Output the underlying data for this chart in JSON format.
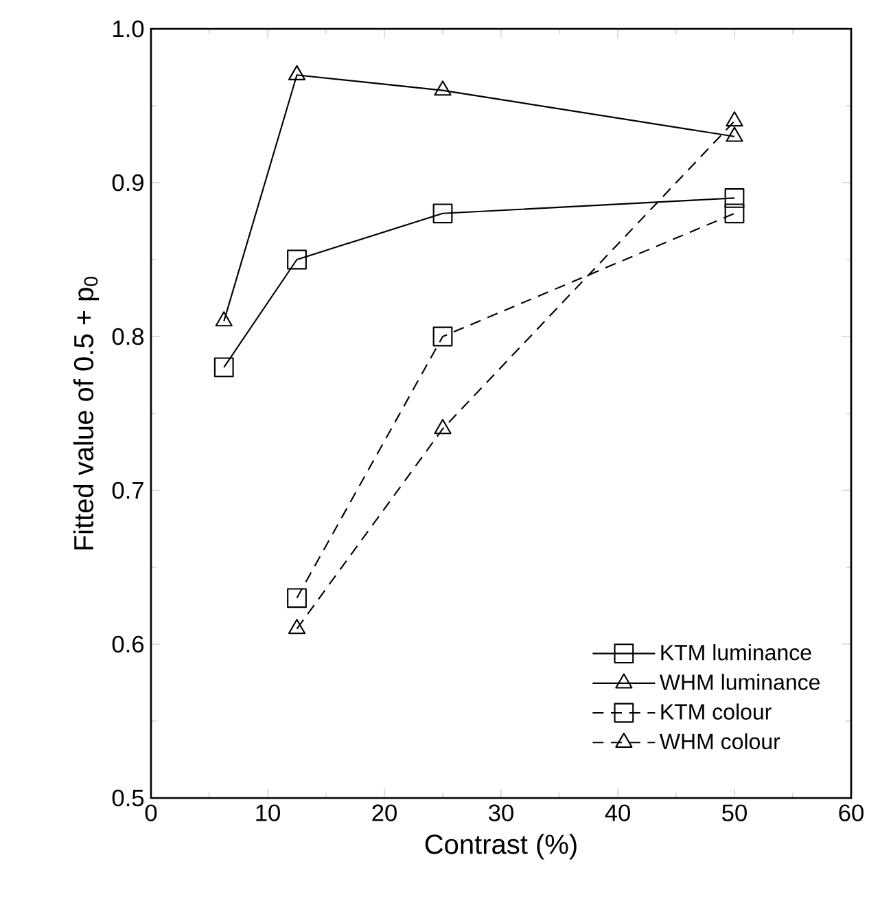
{
  "chart_data": {
    "type": "line",
    "xlabel": "Contrast (%)",
    "ylabel": "Fitted value of 0.5 + p$_{0}$",
    "xlim": [
      0,
      60
    ],
    "ylim": [
      0.5,
      1.0
    ],
    "xticks": [
      0,
      10,
      20,
      30,
      40,
      50,
      60
    ],
    "yticks": [
      0.5,
      0.6,
      0.7,
      0.8,
      0.9,
      {
        "value": 1.0,
        "label": "1.0"
      }
    ],
    "grid": false,
    "legend": "bottom right",
    "series": [
      {
        "name": "KTM luminance",
        "color": "#000000",
        "x": [
          6.25,
          12.5,
          25,
          50
        ],
        "values": [
          0.78,
          0.85,
          0.88,
          0.89
        ],
        "marker": "square",
        "line_style": "solid"
      },
      {
        "name": "WHM luminance",
        "color": "#000000",
        "x": [
          6.25,
          12.5,
          25,
          50
        ],
        "values": [
          0.81,
          0.97,
          0.96,
          0.93
        ],
        "marker": "triangle",
        "line_style": "solid"
      },
      {
        "name": "KTM colour",
        "color": "#000000",
        "x": [
          12.5,
          25,
          50
        ],
        "values": [
          0.63,
          0.8,
          0.88
        ],
        "marker": "square",
        "line_style": "dashed"
      },
      {
        "name": "WHM colour",
        "color": "#000000",
        "x": [
          12.5,
          25,
          50
        ],
        "values": [
          0.61,
          0.74,
          0.94
        ],
        "marker": "triangle",
        "line_style": "dashed"
      }
    ]
  }
}
